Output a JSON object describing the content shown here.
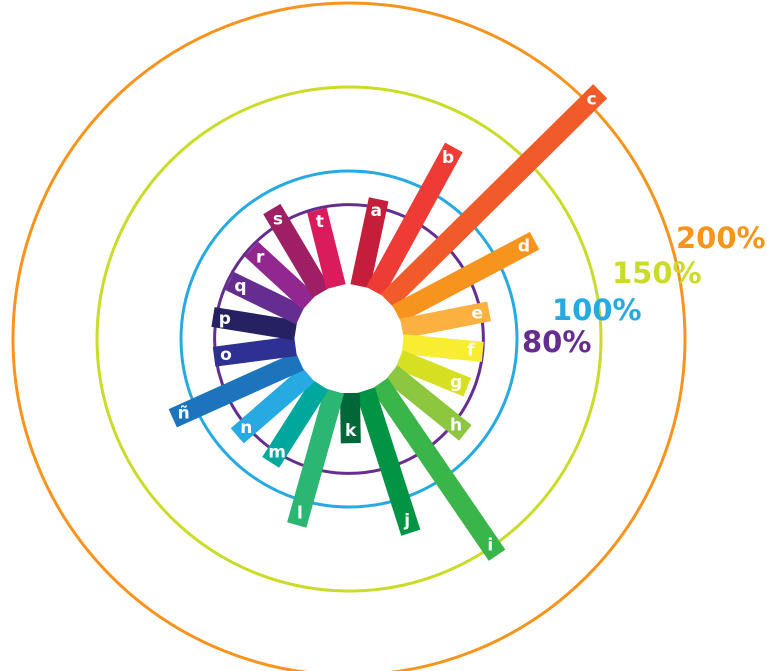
{
  "chart_data": {
    "type": "bar",
    "subtype": "radial",
    "categories": [
      "a",
      "b",
      "c",
      "d",
      "e",
      "f",
      "g",
      "h",
      "i",
      "j",
      "k",
      "l",
      "m",
      "n",
      "ñ",
      "o",
      "p",
      "q",
      "r",
      "s",
      "t"
    ],
    "values": [
      85,
      130,
      210,
      125,
      85,
      80,
      76,
      89,
      156,
      121,
      62,
      115,
      87,
      88,
      115,
      81,
      82,
      79,
      79,
      90,
      79
    ],
    "colors": [
      "#c41e3a",
      "#ee3b35",
      "#f15a29",
      "#f7941d",
      "#fbb040",
      "#f9ed32",
      "#d7df23",
      "#8dc63f",
      "#39b54a",
      "#009444",
      "#006838",
      "#2bb673",
      "#00a79d",
      "#27aae1",
      "#1c75bc",
      "#2e3192",
      "#262262",
      "#662d91",
      "#92278f",
      "#9e1f63",
      "#da1c5c"
    ],
    "rings": [
      {
        "value": 80,
        "label": "80%",
        "color": "#662d91"
      },
      {
        "value": 100,
        "label": "100%",
        "color": "#27aae1"
      },
      {
        "value": 150,
        "label": "150%",
        "color": "#cbdb2a"
      },
      {
        "value": 200,
        "label": "200%",
        "color": "#f7941d"
      }
    ]
  }
}
